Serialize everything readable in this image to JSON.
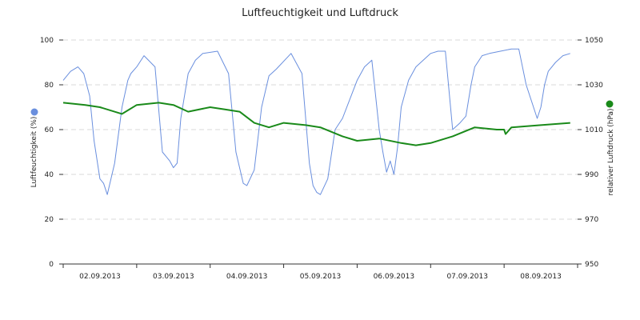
{
  "chart_data": {
    "type": "line",
    "title": "Luftfeuchtigkeit und Luftdruck",
    "ylabel_left": "Luftfeuchtigkeit (%)",
    "ylabel_right": "relativer Luftdruck (hPa)",
    "ylim_left": [
      0,
      100
    ],
    "ylim_right": [
      950,
      1050
    ],
    "yticks_left": [
      0,
      20,
      40,
      60,
      80,
      100
    ],
    "yticks_right": [
      950,
      970,
      990,
      1010,
      1030,
      1050
    ],
    "xlim": [
      0,
      7
    ],
    "x_categories": [
      "02.09.2013",
      "03.09.2013",
      "04.09.2013",
      "05.09.2013",
      "06.09.2013",
      "07.09.2013",
      "08.09.2013"
    ],
    "grid": "horizontal dashed",
    "legend": "colored dots beside axis labels",
    "series": [
      {
        "axis": "left",
        "color": "#6a8fde",
        "x": [
          0,
          0.1,
          0.2,
          0.28,
          0.36,
          0.42,
          0.5,
          0.55,
          0.6,
          0.7,
          0.8,
          0.88,
          0.92,
          1.0,
          1.1,
          1.25,
          1.35,
          1.4,
          1.45,
          1.5,
          1.55,
          1.6,
          1.7,
          1.8,
          1.9,
          2.1,
          2.25,
          2.35,
          2.4,
          2.45,
          2.5,
          2.6,
          2.7,
          2.8,
          2.9,
          3.1,
          3.25,
          3.35,
          3.4,
          3.45,
          3.5,
          3.6,
          3.7,
          3.8,
          4.0,
          4.1,
          4.2,
          4.3,
          4.35,
          4.4,
          4.45,
          4.5,
          4.55,
          4.6,
          4.7,
          4.8,
          5.0,
          5.1,
          5.2,
          5.3,
          5.4,
          5.48,
          5.55,
          5.6,
          5.7,
          5.8,
          5.95,
          6.1,
          6.2,
          6.3,
          6.4,
          6.45,
          6.5,
          6.55,
          6.6,
          6.7,
          6.8,
          6.9
        ],
        "values": [
          82,
          86,
          88,
          85,
          75,
          55,
          38,
          36,
          31,
          45,
          70,
          82,
          85,
          88,
          93,
          88,
          50,
          48,
          46,
          43,
          45,
          65,
          85,
          91,
          94,
          95,
          85,
          50,
          43,
          36,
          35,
          42,
          70,
          84,
          87,
          94,
          85,
          45,
          35,
          32,
          31,
          38,
          60,
          65,
          82,
          88,
          91,
          60,
          50,
          41,
          46,
          40,
          52,
          70,
          82,
          88,
          94,
          95,
          95,
          60,
          63,
          66,
          80,
          88,
          93,
          94,
          95,
          96,
          96,
          80,
          70,
          65,
          70,
          80,
          86,
          90,
          93,
          94
        ]
      },
      {
        "axis": "right",
        "color": "#1a8a1a",
        "x": [
          0,
          0.3,
          0.5,
          0.8,
          1.0,
          1.3,
          1.5,
          1.7,
          2.0,
          2.2,
          2.4,
          2.6,
          2.8,
          3.0,
          3.3,
          3.5,
          3.8,
          4.0,
          4.3,
          4.6,
          4.8,
          5.0,
          5.3,
          5.6,
          5.9,
          6.0,
          6.02,
          6.1,
          6.5,
          6.9
        ],
        "values": [
          1022,
          1021,
          1020,
          1017,
          1021,
          1022,
          1021,
          1018,
          1020,
          1019,
          1018,
          1013,
          1011,
          1013,
          1012,
          1011,
          1007,
          1005,
          1006,
          1004,
          1003,
          1004,
          1007,
          1011,
          1010,
          1010,
          1008,
          1011,
          1012,
          1013
        ]
      }
    ]
  }
}
